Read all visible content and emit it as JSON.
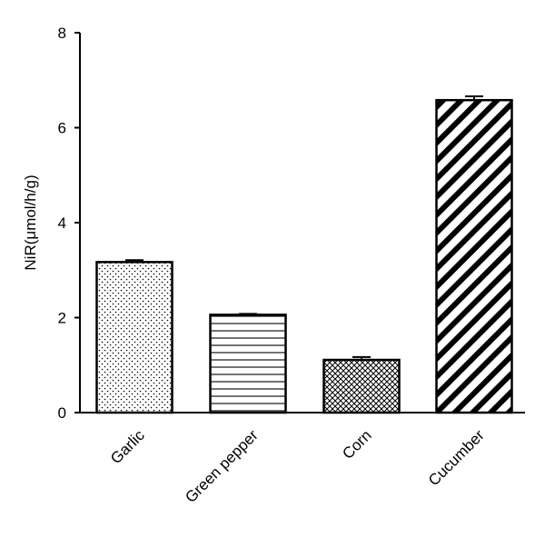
{
  "chart_data": {
    "type": "bar",
    "categories": [
      "Garlic",
      "Green pepper",
      "Corn",
      "Cucumber"
    ],
    "values": [
      3.17,
      2.06,
      1.11,
      6.58
    ],
    "errors": [
      0.04,
      0.02,
      0.06,
      0.08
    ],
    "patterns": [
      "dots",
      "horizontal-lines",
      "crosshatch",
      "diagonal-stripes"
    ],
    "ylabel": "NiR(μmol/h/g)",
    "xlabel": "",
    "ylim": [
      0,
      8
    ],
    "yticks": [
      "0",
      "2",
      "4",
      "6",
      "8"
    ],
    "grid": false,
    "legend": "none",
    "colors": {
      "bar_fill": "#ffffff",
      "bar_stroke": "#000000"
    }
  }
}
